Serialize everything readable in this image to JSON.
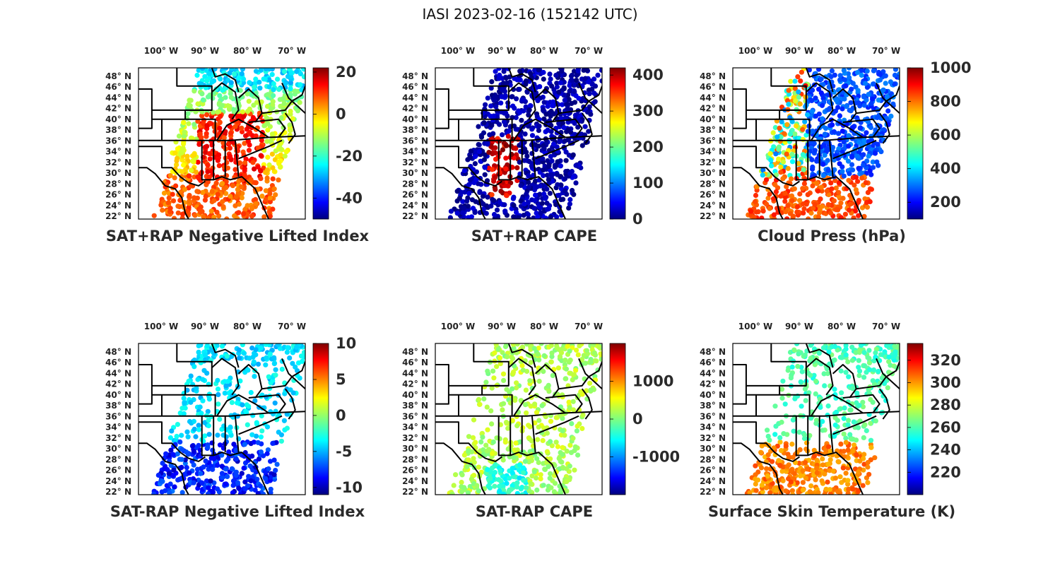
{
  "title": "IASI 2023-02-16 (152142 UTC)",
  "lon_ticks": [
    "100° W",
    "90° W",
    "80° W",
    "70° W"
  ],
  "lat_ticks": [
    "48° N",
    "46° N",
    "44° N",
    "42° N",
    "40° N",
    "38° N",
    "36° N",
    "34° N",
    "32° N",
    "30° N",
    "28° N",
    "26° N",
    "24° N",
    "22° N"
  ],
  "colormap": "jet",
  "colormap_stops": [
    "#00007f",
    "#0000ff",
    "#007fff",
    "#00ffff",
    "#7fff7f",
    "#ffff00",
    "#ff7f00",
    "#ff0000",
    "#7f0000"
  ],
  "panels": [
    {
      "id": "sat-rap-neg-lifted-index",
      "title": "SAT+RAP Negative Lifted Index",
      "colorbar": {
        "min": -50,
        "max": 22,
        "ticks": [
          -40,
          -20,
          0,
          20
        ],
        "tick_labels": [
          "-40",
          "-20",
          "0",
          "20"
        ]
      }
    },
    {
      "id": "sat-rap-cape",
      "title": "SAT+RAP CAPE",
      "colorbar": {
        "min": 0,
        "max": 420,
        "ticks": [
          0,
          100,
          200,
          300,
          400
        ],
        "tick_labels": [
          "0",
          "100",
          "200",
          "300",
          "400"
        ]
      }
    },
    {
      "id": "cloud-press",
      "title": "Cloud Press (hPa)",
      "colorbar": {
        "min": 100,
        "max": 1000,
        "ticks": [
          200,
          400,
          600,
          800,
          1000
        ],
        "tick_labels": [
          "200",
          "400",
          "600",
          "800",
          "1000"
        ]
      }
    },
    {
      "id": "sat-minus-rap-neg-lifted-index",
      "title": "SAT-RAP Negative Lifted Index",
      "colorbar": {
        "min": -11,
        "max": 10,
        "ticks": [
          -10,
          -5,
          0,
          5,
          10
        ],
        "tick_labels": [
          "-10",
          "-5",
          "0",
          "5",
          "10"
        ]
      }
    },
    {
      "id": "sat-minus-rap-cape",
      "title": "SAT-RAP CAPE",
      "colorbar": {
        "min": -2000,
        "max": 2000,
        "ticks": [
          -1000,
          0,
          1000
        ],
        "tick_labels": [
          "-1000",
          "0",
          "1000"
        ]
      }
    },
    {
      "id": "surface-skin-temp",
      "title": "Surface Skin Temperature (K)",
      "colorbar": {
        "min": 200,
        "max": 335,
        "ticks": [
          220,
          240,
          260,
          280,
          300,
          320
        ],
        "tick_labels": [
          "220",
          "240",
          "260",
          "280",
          "300",
          "320"
        ]
      }
    }
  ]
}
